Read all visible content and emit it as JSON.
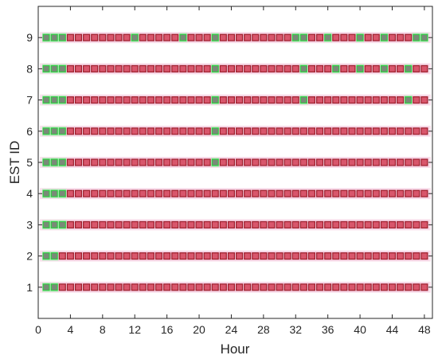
{
  "chart_data": {
    "type": "heatmap",
    "title": "",
    "xlabel": "Hour",
    "ylabel": "EST ID",
    "xlim": [
      0,
      49
    ],
    "ylim": [
      0,
      10
    ],
    "xticks": [
      0,
      4,
      8,
      12,
      16,
      20,
      24,
      28,
      32,
      36,
      40,
      44,
      48
    ],
    "yticks": [
      1,
      2,
      3,
      4,
      5,
      6,
      7,
      8,
      9
    ],
    "grid": false,
    "legend": "none",
    "colors": {
      "on_fill": "#d8566c",
      "on_edge": "#9e1f2c",
      "off_fill": "#7a8a78",
      "off_edge": "#2ecc40",
      "glow_on": "#f4c6dd",
      "glow_off": "#9ff0b0"
    },
    "series": [
      {
        "id": 1,
        "green_hours": [
          1,
          2
        ]
      },
      {
        "id": 2,
        "green_hours": [
          1,
          2
        ]
      },
      {
        "id": 3,
        "green_hours": [
          1,
          2,
          3
        ]
      },
      {
        "id": 4,
        "green_hours": [
          1,
          2,
          3
        ]
      },
      {
        "id": 5,
        "green_hours": [
          1,
          2,
          3,
          22
        ]
      },
      {
        "id": 6,
        "green_hours": [
          1,
          2,
          3,
          22
        ]
      },
      {
        "id": 7,
        "green_hours": [
          1,
          2,
          3,
          22,
          33,
          46
        ]
      },
      {
        "id": 8,
        "green_hours": [
          1,
          2,
          3,
          22,
          33,
          37,
          40,
          43,
          46
        ]
      },
      {
        "id": 9,
        "green_hours": [
          1,
          2,
          3,
          12,
          18,
          22,
          32,
          33,
          36,
          40,
          43,
          47,
          48
        ]
      }
    ]
  }
}
